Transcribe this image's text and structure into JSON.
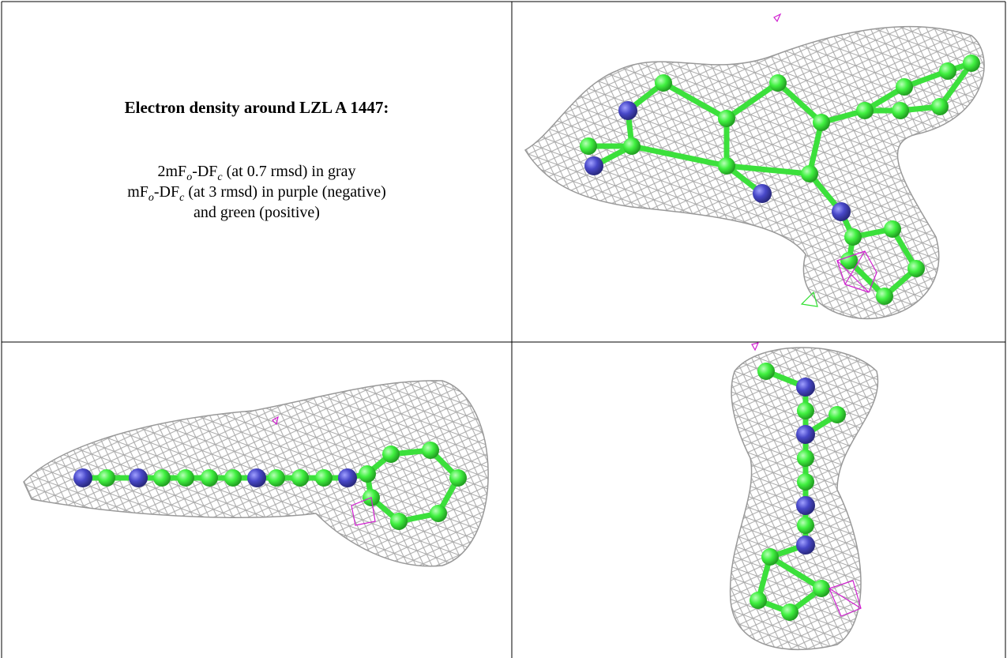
{
  "panel": {
    "title": "Electron density around LZL A 1447:",
    "caption": {
      "line1": [
        "2mF",
        "o",
        "-DF",
        "c",
        " (at 0.7 rmsd) in gray"
      ],
      "line2": [
        "mF",
        "o",
        "-DF",
        "c",
        " (at 3 rmsd) in purple (negative)"
      ],
      "line3": "and green (positive)"
    }
  }
}
